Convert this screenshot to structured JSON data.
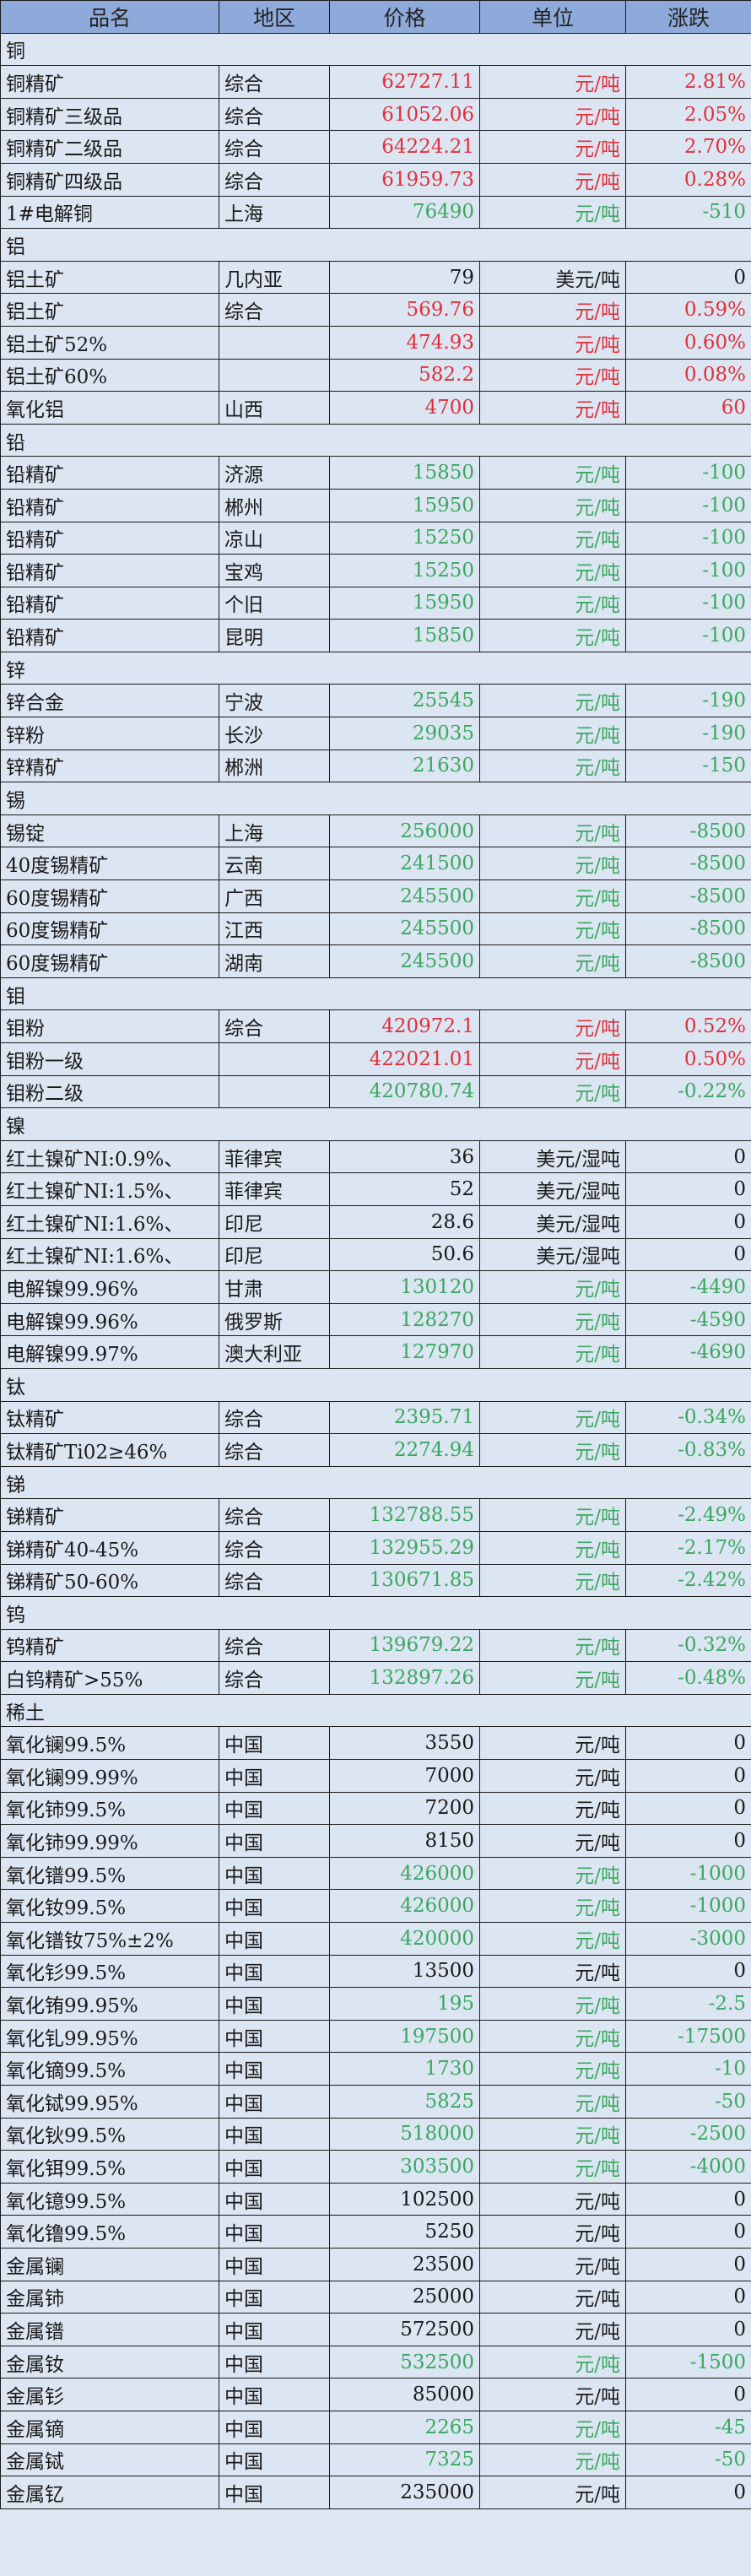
{
  "header": {
    "name": "品名",
    "region": "地区",
    "price": "价格",
    "unit": "单位",
    "change": "涨跌"
  },
  "colors": {
    "header_bg": "#8eaadb",
    "row_bg": "#dce5f2",
    "up": "#e0303a",
    "down": "#3aa860",
    "flat": "#1a1a1a"
  },
  "sections": [
    {
      "title": "铜",
      "rows": [
        [
          "铜精矿",
          "综合",
          "62727.11",
          "元/吨",
          "2.81%",
          "up"
        ],
        [
          "铜精矿三级品",
          "综合",
          "61052.06",
          "元/吨",
          "2.05%",
          "up"
        ],
        [
          "铜精矿二级品",
          "综合",
          "64224.21",
          "元/吨",
          "2.70%",
          "up"
        ],
        [
          "铜精矿四级品",
          "综合",
          "61959.73",
          "元/吨",
          "0.28%",
          "up"
        ],
        [
          "1#电解铜",
          "上海",
          "76490",
          "元/吨",
          "-510",
          "down"
        ]
      ]
    },
    {
      "title": "铝",
      "rows": [
        [
          "铝土矿",
          "几内亚",
          "79",
          "美元/吨",
          "0",
          "flat"
        ],
        [
          "铝土矿",
          "综合",
          "569.76",
          "元/吨",
          "0.59%",
          "up"
        ],
        [
          "铝土矿52%",
          "",
          "474.93",
          "元/吨",
          "0.60%",
          "up"
        ],
        [
          "铝土矿60%",
          "",
          "582.2",
          "元/吨",
          "0.08%",
          "up"
        ],
        [
          "氧化铝",
          "山西",
          "4700",
          "元/吨",
          "60",
          "up"
        ]
      ]
    },
    {
      "title": "铅",
      "rows": [
        [
          "铅精矿",
          "济源",
          "15850",
          "元/吨",
          "-100",
          "down"
        ],
        [
          "铅精矿",
          "郴州",
          "15950",
          "元/吨",
          "-100",
          "down"
        ],
        [
          "铅精矿",
          "凉山",
          "15250",
          "元/吨",
          "-100",
          "down"
        ],
        [
          "铅精矿",
          "宝鸡",
          "15250",
          "元/吨",
          "-100",
          "down"
        ],
        [
          "铅精矿",
          "个旧",
          "15950",
          "元/吨",
          "-100",
          "down"
        ],
        [
          "铅精矿",
          "昆明",
          "15850",
          "元/吨",
          "-100",
          "down"
        ]
      ]
    },
    {
      "title": "锌",
      "rows": [
        [
          "锌合金",
          "宁波",
          "25545",
          "元/吨",
          "-190",
          "down"
        ],
        [
          "锌粉",
          "长沙",
          "29035",
          "元/吨",
          "-190",
          "down"
        ],
        [
          "锌精矿",
          "郴洲",
          "21630",
          "元/吨",
          "-150",
          "down"
        ]
      ]
    },
    {
      "title": "锡",
      "rows": [
        [
          "锡锭",
          "上海",
          "256000",
          "元/吨",
          "-8500",
          "down"
        ],
        [
          "40度锡精矿",
          "云南",
          "241500",
          "元/吨",
          "-8500",
          "down"
        ],
        [
          "60度锡精矿",
          "广西",
          "245500",
          "元/吨",
          "-8500",
          "down"
        ],
        [
          "60度锡精矿",
          "江西",
          "245500",
          "元/吨",
          "-8500",
          "down"
        ],
        [
          "60度锡精矿",
          "湖南",
          "245500",
          "元/吨",
          "-8500",
          "down"
        ]
      ]
    },
    {
      "title": "钼",
      "rows": [
        [
          "钼粉",
          "综合",
          "420972.1",
          "元/吨",
          "0.52%",
          "up"
        ],
        [
          "钼粉一级",
          "",
          "422021.01",
          "元/吨",
          "0.50%",
          "up"
        ],
        [
          "钼粉二级",
          "",
          "420780.74",
          "元/吨",
          "-0.22%",
          "down"
        ]
      ]
    },
    {
      "title": "镍",
      "rows": [
        [
          "红土镍矿NI:0.9%、",
          "菲律宾",
          "36",
          "美元/湿吨",
          "0",
          "flat"
        ],
        [
          "红土镍矿NI:1.5%、",
          "菲律宾",
          "52",
          "美元/湿吨",
          "0",
          "flat"
        ],
        [
          "红土镍矿NI:1.6%、",
          "印尼",
          "28.6",
          "美元/湿吨",
          "0",
          "flat"
        ],
        [
          "红土镍矿NI:1.6%、",
          "印尼",
          "50.6",
          "美元/湿吨",
          "0",
          "flat"
        ],
        [
          "电解镍99.96%",
          "甘肃",
          "130120",
          "元/吨",
          "-4490",
          "down"
        ],
        [
          "电解镍99.96%",
          "俄罗斯",
          "128270",
          "元/吨",
          "-4590",
          "down"
        ],
        [
          "电解镍99.97%",
          "澳大利亚",
          "127970",
          "元/吨",
          "-4690",
          "down"
        ]
      ]
    },
    {
      "title": "钛",
      "rows": [
        [
          "钛精矿",
          "综合",
          "2395.71",
          "元/吨",
          "-0.34%",
          "down"
        ],
        [
          "钛精矿Ti02≥46%",
          "综合",
          "2274.94",
          "元/吨",
          "-0.83%",
          "down"
        ]
      ]
    },
    {
      "title": "锑",
      "rows": [
        [
          "锑精矿",
          "综合",
          "132788.55",
          "元/吨",
          "-2.49%",
          "down"
        ],
        [
          "锑精矿40-45%",
          "综合",
          "132955.29",
          "元/吨",
          "-2.17%",
          "down"
        ],
        [
          "锑精矿50-60%",
          "综合",
          "130671.85",
          "元/吨",
          "-2.42%",
          "down"
        ]
      ]
    },
    {
      "title": "钨",
      "rows": [
        [
          "钨精矿",
          "综合",
          "139679.22",
          "元/吨",
          "-0.32%",
          "down"
        ],
        [
          "白钨精矿>55%",
          "综合",
          "132897.26",
          "元/吨",
          "-0.48%",
          "down"
        ]
      ]
    },
    {
      "title": "稀土",
      "rows": [
        [
          "氧化镧99.5%",
          "中国",
          "3550",
          "元/吨",
          "0",
          "flat"
        ],
        [
          "氧化镧99.99%",
          "中国",
          "7000",
          "元/吨",
          "0",
          "flat"
        ],
        [
          "氧化铈99.5%",
          "中国",
          "7200",
          "元/吨",
          "0",
          "flat"
        ],
        [
          "氧化铈99.99%",
          "中国",
          "8150",
          "元/吨",
          "0",
          "flat"
        ],
        [
          "氧化镨99.5%",
          "中国",
          "426000",
          "元/吨",
          "-1000",
          "down"
        ],
        [
          "氧化钕99.5%",
          "中国",
          "426000",
          "元/吨",
          "-1000",
          "down"
        ],
        [
          "氧化镨钕75%±2%",
          "中国",
          "420000",
          "元/吨",
          "-3000",
          "down"
        ],
        [
          "氧化钐99.5%",
          "中国",
          "13500",
          "元/吨",
          "0",
          "flat"
        ],
        [
          "氧化铕99.95%",
          "中国",
          "195",
          "元/吨",
          "-2.5",
          "down"
        ],
        [
          "氧化钆99.95%",
          "中国",
          "197500",
          "元/吨",
          "-17500",
          "down"
        ],
        [
          "氧化镝99.5%",
          "中国",
          "1730",
          "元/吨",
          "-10",
          "down"
        ],
        [
          "氧化铽99.95%",
          "中国",
          "5825",
          "元/吨",
          "-50",
          "down"
        ],
        [
          "氧化钬99.5%",
          "中国",
          "518000",
          "元/吨",
          "-2500",
          "down"
        ],
        [
          "氧化铒99.5%",
          "中国",
          "303500",
          "元/吨",
          "-4000",
          "down"
        ],
        [
          "氧化镱99.5%",
          "中国",
          "102500",
          "元/吨",
          "0",
          "flat"
        ],
        [
          "氧化镥99.5%",
          "中国",
          "5250",
          "元/吨",
          "0",
          "flat"
        ],
        [
          "金属镧",
          "中国",
          "23500",
          "元/吨",
          "0",
          "flat"
        ],
        [
          "金属铈",
          "中国",
          "25000",
          "元/吨",
          "0",
          "flat"
        ],
        [
          "金属镨",
          "中国",
          "572500",
          "元/吨",
          "0",
          "flat"
        ],
        [
          "金属钕",
          "中国",
          "532500",
          "元/吨",
          "-1500",
          "down"
        ],
        [
          "金属钐",
          "中国",
          "85000",
          "元/吨",
          "0",
          "flat"
        ],
        [
          "金属镝",
          "中国",
          "2265",
          "元/吨",
          "-45",
          "down"
        ],
        [
          "金属铽",
          "中国",
          "7325",
          "元/吨",
          "-50",
          "down"
        ],
        [
          "金属钇",
          "中国",
          "235000",
          "元/吨",
          "0",
          "flat"
        ]
      ]
    }
  ]
}
